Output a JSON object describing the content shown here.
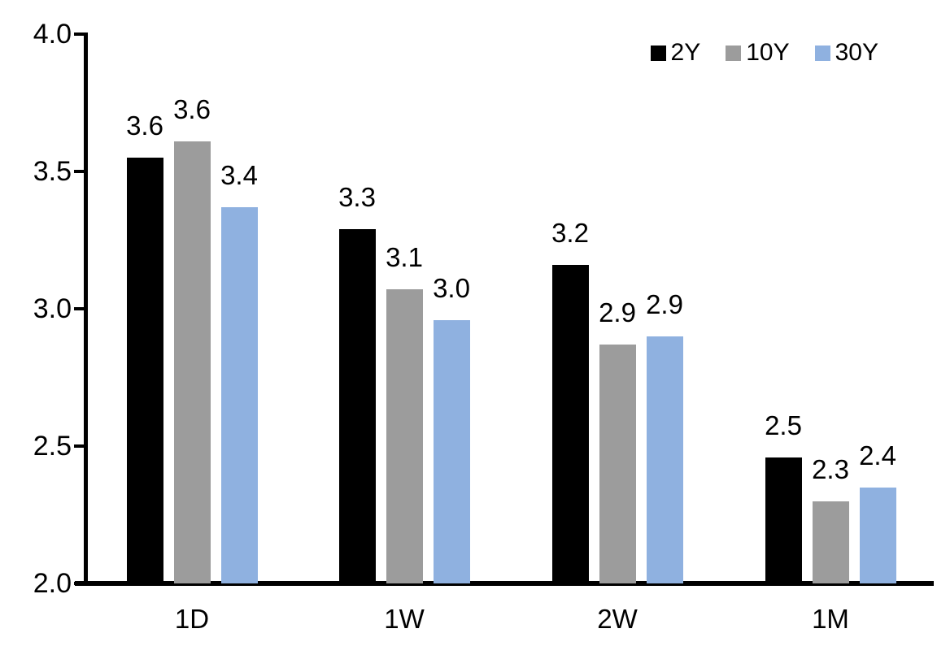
{
  "chart_data": {
    "type": "bar",
    "title": "",
    "xlabel": "",
    "ylabel": "",
    "grid": false,
    "legend_position": "top-right",
    "background_color": "#FFFFFF",
    "axis_color": "#000000",
    "categories": [
      "1D",
      "1W",
      "2W",
      "1M"
    ],
    "series": [
      {
        "name": "2Y",
        "color": "#000000",
        "values": [
          3.55,
          3.29,
          3.16,
          2.46
        ],
        "data_labels": [
          "3.6",
          "3.3",
          "3.2",
          "2.5"
        ]
      },
      {
        "name": "10Y",
        "color": "#9C9C9C",
        "values": [
          3.61,
          3.07,
          2.87,
          2.3
        ],
        "data_labels": [
          "3.6",
          "3.1",
          "2.9",
          "2.3"
        ]
      },
      {
        "name": "30Y",
        "color": "#8FB1E0",
        "values": [
          3.37,
          2.96,
          2.9,
          2.35
        ],
        "data_labels": [
          "3.4",
          "3.0",
          "2.9",
          "2.4"
        ]
      }
    ],
    "ylim": [
      2.0,
      4.0
    ],
    "yticks": [
      "4.0",
      "3.5",
      "3.0",
      "2.5",
      "2.0"
    ],
    "ytick_values": [
      4.0,
      3.5,
      3.0,
      2.5,
      2.0
    ]
  }
}
